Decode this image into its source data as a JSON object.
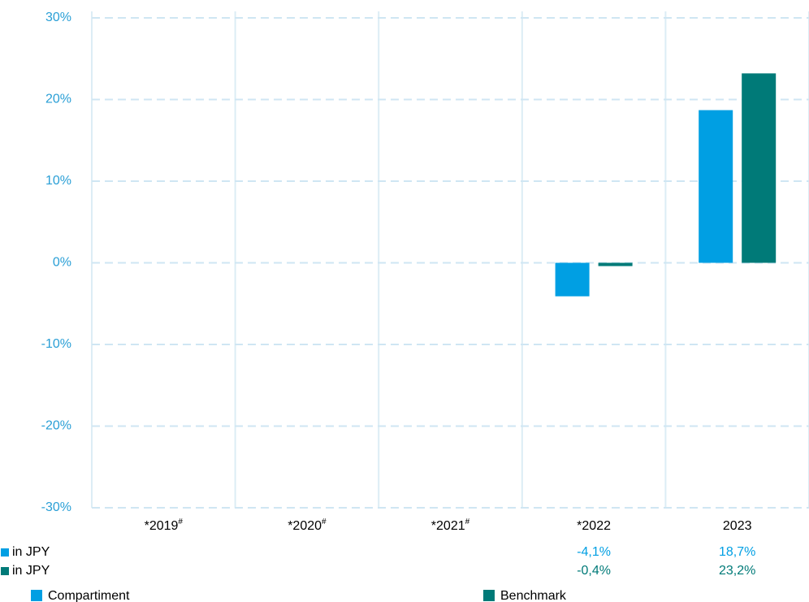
{
  "chart_data": {
    "type": "bar",
    "categories": [
      "*2019",
      "*2020",
      "*2021",
      "*2022",
      "2023"
    ],
    "category_marks": [
      "#",
      "#",
      "#",
      null,
      null
    ],
    "series": [
      {
        "name": "Compartiment",
        "color": "#009fe3",
        "row_label": "in JPY",
        "values": [
          null,
          null,
          null,
          -4.1,
          18.7
        ],
        "value_labels": [
          null,
          null,
          null,
          "-4,1%",
          "18,7%"
        ]
      },
      {
        "name": "Benchmark",
        "color": "#007a78",
        "row_label": "in JPY",
        "values": [
          null,
          null,
          null,
          -0.4,
          23.2
        ],
        "value_labels": [
          null,
          null,
          null,
          "-0,4%",
          "23,2%"
        ]
      }
    ],
    "ylim": [
      -30,
      30
    ],
    "yticks": [
      {
        "value": -30,
        "label": "-30%"
      },
      {
        "value": -20,
        "label": "-20%"
      },
      {
        "value": -10,
        "label": "-10%"
      },
      {
        "value": 0,
        "label": "0%"
      },
      {
        "value": 10,
        "label": "10%"
      },
      {
        "value": 20,
        "label": "20%"
      },
      {
        "value": 30,
        "label": "30%"
      }
    ],
    "grid": true
  }
}
